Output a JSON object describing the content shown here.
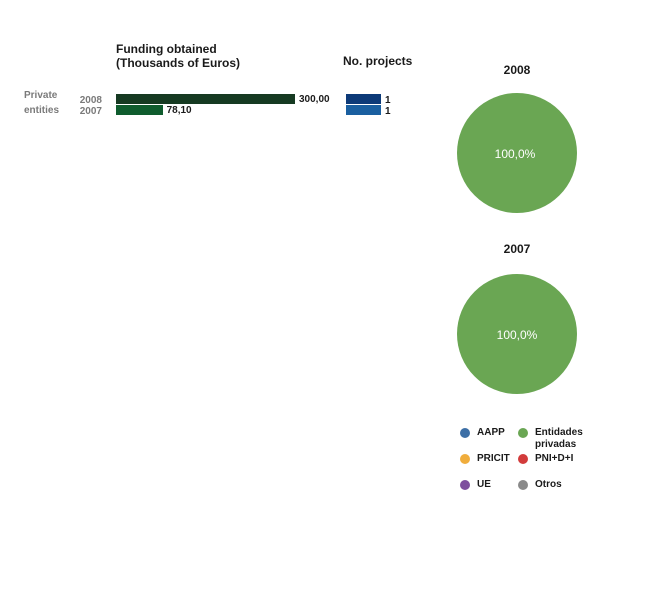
{
  "headers": {
    "funding": "Funding obtained\n(Thousands of Euros)",
    "projects": "No. projects"
  },
  "category": "Private\nentities",
  "colors": {
    "funding_2008": "#163a22",
    "funding_2007": "#0f5c2e",
    "projects_2008": "#0d3a78",
    "projects_2007": "#1a5fa0",
    "pie_green": "#6aa653"
  },
  "chart_data": [
    {
      "type": "bar",
      "title": "Funding obtained (Thousands of Euros)",
      "categories": [
        "Private entities"
      ],
      "series": [
        {
          "name": "2008",
          "values": [
            300.0
          ],
          "labels": [
            "300,00"
          ]
        },
        {
          "name": "2007",
          "values": [
            78.1
          ],
          "labels": [
            "78,10"
          ]
        }
      ],
      "xlim": [
        0,
        300
      ]
    },
    {
      "type": "bar",
      "title": "No. projects",
      "categories": [
        "Private entities"
      ],
      "series": [
        {
          "name": "2008",
          "values": [
            1
          ],
          "labels": [
            "1"
          ]
        },
        {
          "name": "2007",
          "values": [
            1
          ],
          "labels": [
            "1"
          ]
        }
      ],
      "xlim": [
        0,
        1
      ]
    },
    {
      "type": "pie",
      "title": "2008",
      "slices": [
        {
          "name": "Entidades privadas",
          "value": 100.0,
          "label": "100,0%"
        }
      ]
    },
    {
      "type": "pie",
      "title": "2007",
      "slices": [
        {
          "name": "Entidades privadas",
          "value": 100.0,
          "label": "100,0%"
        }
      ]
    }
  ],
  "legend": [
    {
      "label": "AAPP",
      "color": "#3d6fa6"
    },
    {
      "label": "Entidades\nprivadas",
      "color": "#6aa653"
    },
    {
      "label": "PRICIT",
      "color": "#f0ad3c"
    },
    {
      "label": "PNI+D+I",
      "color": "#d23b3b"
    },
    {
      "label": "UE",
      "color": "#7e4f9e"
    },
    {
      "label": "Otros",
      "color": "#8a8a8a"
    }
  ]
}
